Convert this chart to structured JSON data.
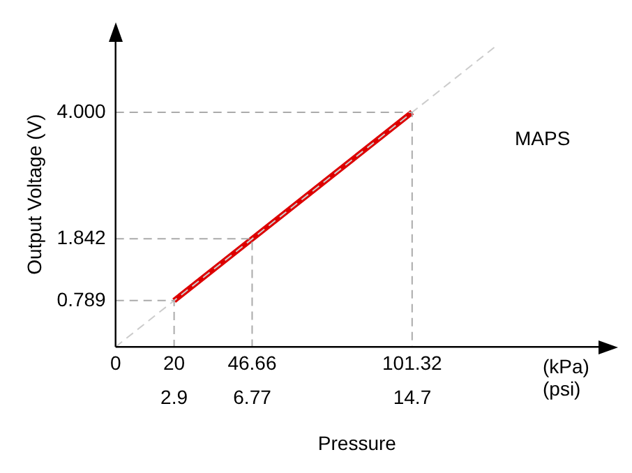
{
  "chart_data": {
    "type": "line",
    "xlabel": "Pressure",
    "ylabel": "Output Voltage (V)",
    "annotations": [
      "MAPS",
      "(kPa)",
      "(psi)"
    ],
    "series": [
      {
        "x": [
          0,
          20,
          20
        ],
        "values": [
          0.789,
          0.789,
          0
        ],
        "color": "#aaaaaa",
        "line_style": "dashed"
      },
      {
        "x": [
          0,
          46.66,
          46.66
        ],
        "values": [
          1.842,
          1.842,
          0
        ],
        "color": "#aaaaaa",
        "line_style": "dashed"
      },
      {
        "x": [
          0,
          101.32,
          101.32
        ],
        "values": [
          4.0,
          4.0,
          0
        ],
        "color": "#aaaaaa",
        "line_style": "dashed"
      },
      {
        "x": [
          0,
          130
        ],
        "values": [
          0,
          5.13
        ],
        "color": "#cccccc",
        "line_style": "dashed"
      },
      {
        "x": [
          20,
          46.66,
          101.32
        ],
        "values": [
          0.789,
          1.842,
          4.0
        ],
        "color": "#dd0000",
        "line_style": "solid"
      }
    ],
    "xlim": [
      0,
      165
    ],
    "ylim": [
      0,
      5.2
    ],
    "xticks": [
      0,
      20,
      46.66,
      101.32
    ],
    "x2lim": [
      0,
      23.93
    ],
    "x2ticks": [
      2.9,
      6.77,
      14.7
    ],
    "yticks": [
      {
        "value": 0.789,
        "label": "0.789"
      },
      {
        "value": 1.842,
        "label": "1.842"
      },
      {
        "value": 4,
        "label": "4.000"
      }
    ],
    "grid": false,
    "legend": false,
    "marker": "none"
  }
}
